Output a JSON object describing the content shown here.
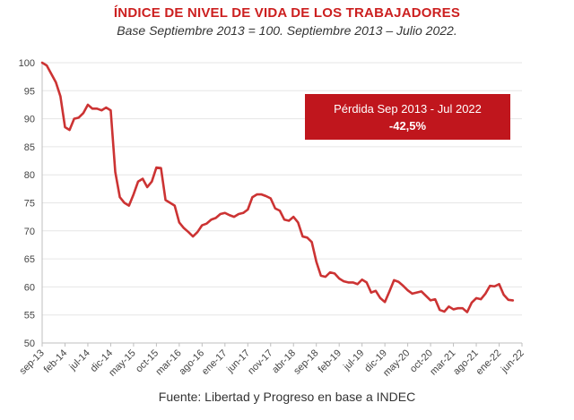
{
  "chart_data": {
    "type": "line",
    "title": "ÍNDICE DE NIVEL DE VIDA DE LOS TRABAJADORES",
    "subtitle": "Base Septiembre 2013 = 100. Septiembre 2013 – Julio 2022.",
    "source": "Fuente: Libertad y Progreso en base a INDEC",
    "ylim": [
      50,
      100
    ],
    "y_ticks": [
      50,
      55,
      60,
      65,
      70,
      75,
      80,
      85,
      90,
      95,
      100
    ],
    "x_start": "sep-13",
    "x_end": "jul-22",
    "x_tick_labels": [
      "sep-13",
      "feb-14",
      "jul-14",
      "dic-14",
      "may-15",
      "oct-15",
      "mar-16",
      "ago-16",
      "ene-17",
      "jun-17",
      "nov-17",
      "abr-18",
      "sep-18",
      "feb-19",
      "jul-19",
      "dic-19",
      "may-20",
      "oct-20",
      "mar-21",
      "ago-21",
      "ene-22",
      "jun-22"
    ],
    "line_color": "#cc3333",
    "series": [
      {
        "name": "Índice de nivel de vida",
        "values": [
          100,
          99.5,
          98,
          96.5,
          94,
          88.5,
          88,
          90,
          90.2,
          91,
          92.5,
          91.8,
          91.8,
          91.5,
          92,
          91.5,
          80.5,
          76,
          75,
          74.5,
          76.5,
          78.8,
          79.3,
          77.8,
          78.8,
          81.3,
          81.2,
          75.5,
          75,
          74.5,
          71.5,
          70.5,
          69.8,
          69,
          69.8,
          71,
          71.3,
          72,
          72.3,
          73,
          73.2,
          72.8,
          72.5,
          73,
          73.2,
          73.8,
          76,
          76.5,
          76.5,
          76.2,
          75.8,
          74,
          73.6,
          72,
          71.8,
          72.5,
          71.5,
          69,
          68.8,
          68,
          64.5,
          62,
          61.8,
          62.6,
          62.4,
          61.5,
          61,
          60.8,
          60.8,
          60.5,
          61.3,
          60.8,
          59,
          59.3,
          58,
          57.3,
          59.2,
          61.2,
          60.9,
          60.2,
          59.4,
          58.8,
          59,
          59.2,
          58.4,
          57.6,
          57.8,
          55.9,
          55.6,
          56.5,
          56,
          56.2,
          56.2,
          55.5,
          57.2,
          58,
          57.8,
          58.8,
          60.2,
          60.1,
          60.5,
          58.6,
          57.7,
          57.6
        ]
      }
    ],
    "annotation": {
      "label": "Pérdida Sep 2013 - Jul 2022",
      "value": "-42,5%",
      "color": "#c0161d"
    }
  }
}
